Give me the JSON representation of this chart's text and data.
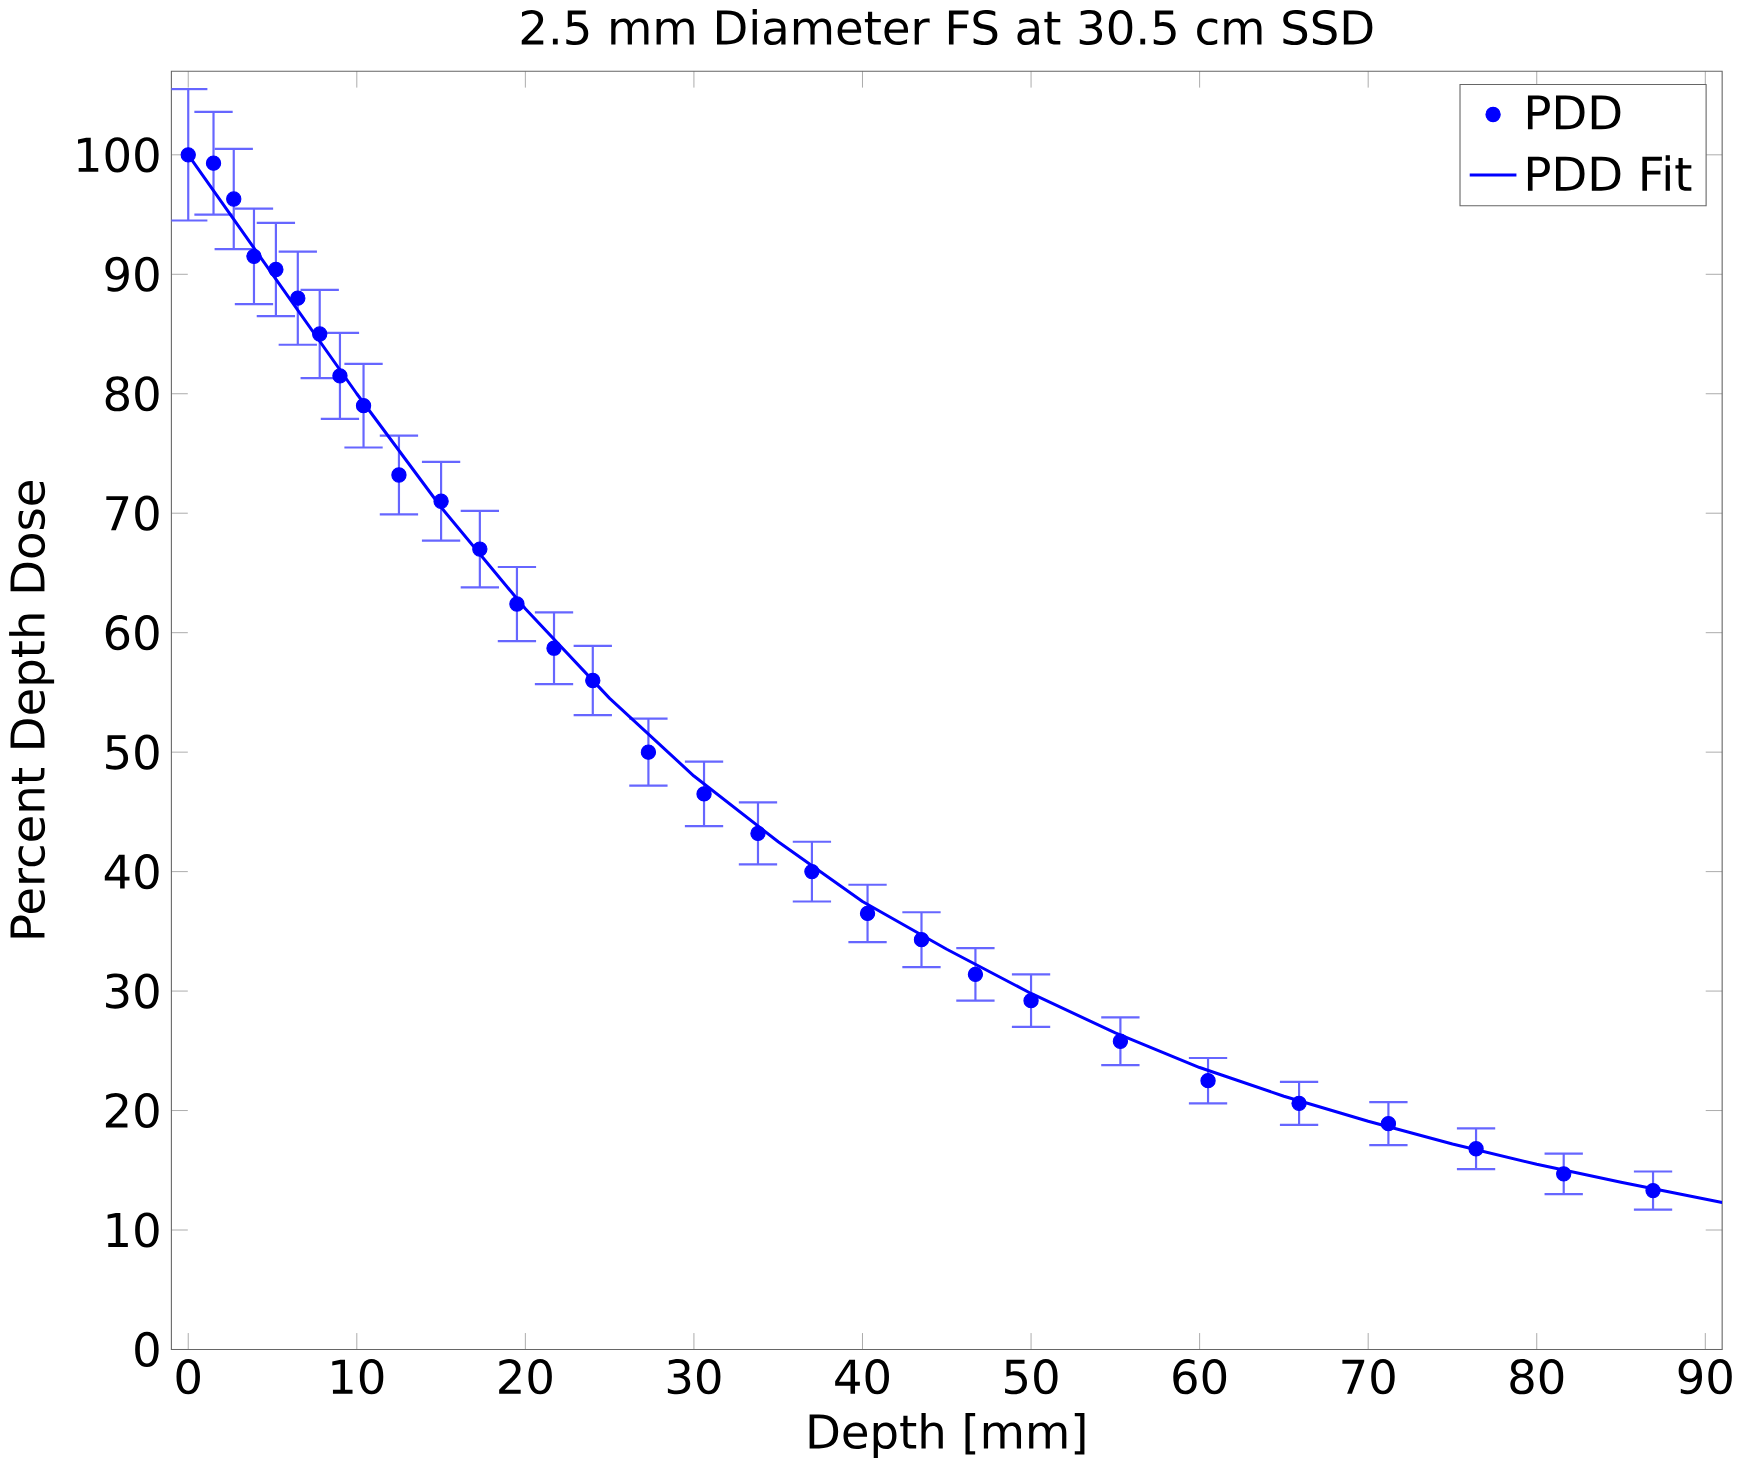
{
  "chart_data": {
    "type": "scatter",
    "title": "2.5 mm Diameter FS at 30.5 cm SSD",
    "xlabel": "Depth [mm]",
    "ylabel": "Percent Depth Dose",
    "xlim": [
      -1,
      91
    ],
    "ylim": [
      0,
      107
    ],
    "xticks": [
      0,
      10,
      20,
      30,
      40,
      50,
      60,
      70,
      80,
      90
    ],
    "yticks": [
      0,
      10,
      20,
      30,
      40,
      50,
      60,
      70,
      80,
      90,
      100
    ],
    "legend": "top right",
    "grid": false,
    "series": [
      {
        "name": "PDD",
        "marker": "circle",
        "color": "#0000ff",
        "x": [
          0,
          1.5,
          2.7,
          3.9,
          5.2,
          6.5,
          7.8,
          9,
          10.4,
          12.5,
          15,
          17.3,
          19.5,
          21.7,
          24,
          27.3,
          30.6,
          33.8,
          37,
          40.3,
          43.5,
          46.7,
          50,
          55.3,
          60.5,
          65.9,
          71.2,
          76.4,
          81.6,
          86.9
        ],
        "values": [
          100,
          99.3,
          96.3,
          91.5,
          90.4,
          88,
          85,
          81.5,
          79,
          73.2,
          71,
          67,
          62.4,
          58.7,
          56,
          50,
          46.5,
          43.2,
          40,
          36.5,
          34.3,
          31.4,
          29.2,
          25.8,
          22.5,
          20.6,
          18.9,
          16.8,
          14.7,
          13.3
        ],
        "errors": [
          5.5,
          4.3,
          4.2,
          4,
          3.9,
          3.9,
          3.7,
          3.6,
          3.5,
          3.3,
          3.3,
          3.2,
          3.1,
          3,
          2.9,
          2.8,
          2.7,
          2.6,
          2.5,
          2.4,
          2.3,
          2.2,
          2.2,
          2,
          1.9,
          1.8,
          1.8,
          1.7,
          1.7,
          1.6
        ]
      },
      {
        "name": "PDD Fit",
        "type": "line",
        "marker": "none",
        "line_style": "solid",
        "color": "#0000ff",
        "x": [
          0,
          5,
          10,
          15,
          20,
          25,
          30,
          35,
          40,
          45,
          50,
          55,
          60,
          65,
          70,
          75,
          80,
          85,
          91
        ],
        "values": [
          100,
          90,
          80,
          70.5,
          62,
          54.5,
          48,
          42.5,
          37.5,
          33.5,
          29.8,
          26.5,
          23.6,
          21.2,
          19.1,
          17.2,
          15.5,
          14,
          12.3
        ]
      }
    ]
  }
}
